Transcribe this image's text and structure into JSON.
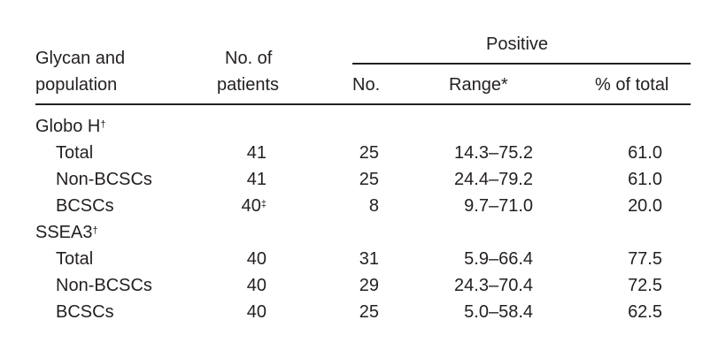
{
  "header": {
    "col1_line1": "Glycan and",
    "col1_line2": "population",
    "col2_line1": "No. of",
    "col2_line2": "patients",
    "positive": "Positive",
    "col3": "No.",
    "col4": "Range*",
    "col5": "% of total"
  },
  "groups": [
    {
      "name": "Globo H",
      "mark": "†",
      "rows": [
        {
          "label": "Total",
          "patients": "41",
          "mark": "",
          "no": "25",
          "range": "14.3–75.2",
          "pct": "61.0"
        },
        {
          "label": "Non-BCSCs",
          "patients": "41",
          "mark": "",
          "no": "25",
          "range": "24.4–79.2",
          "pct": "61.0"
        },
        {
          "label": "BCSCs",
          "patients": "40",
          "mark": "‡",
          "no": "8",
          "range": "9.7–71.0",
          "pct": "20.0"
        }
      ]
    },
    {
      "name": "SSEA3",
      "mark": "†",
      "rows": [
        {
          "label": "Total",
          "patients": "40",
          "mark": "",
          "no": "31",
          "range": "5.9–66.4",
          "pct": "77.5"
        },
        {
          "label": "Non-BCSCs",
          "patients": "40",
          "mark": "",
          "no": "29",
          "range": "24.3–70.4",
          "pct": "72.5"
        },
        {
          "label": "BCSCs",
          "patients": "40",
          "mark": "",
          "no": "25",
          "range": "5.0–58.4",
          "pct": "62.5"
        }
      ]
    }
  ]
}
